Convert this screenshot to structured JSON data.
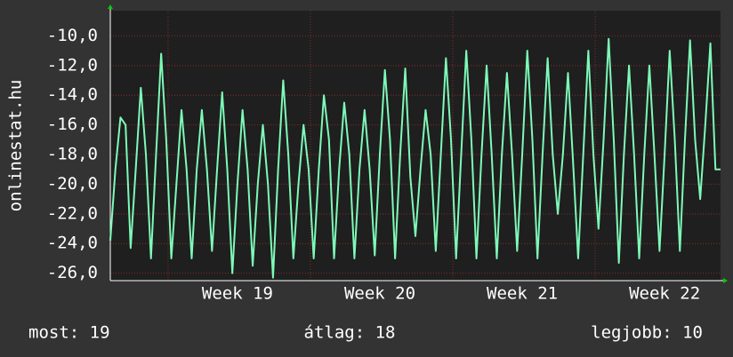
{
  "chart_data": {
    "type": "line",
    "ylabel": "onlinestat.hu",
    "categories": [
      null,
      null,
      null,
      null,
      null,
      null,
      null,
      null,
      null,
      null,
      null,
      null,
      null,
      null,
      null,
      null,
      null,
      null,
      null,
      null,
      null,
      null,
      null,
      null,
      null,
      "Week 19",
      null,
      null,
      null,
      null,
      null,
      null,
      null,
      null,
      null,
      null,
      null,
      null,
      null,
      null,
      null,
      null,
      null,
      null,
      null,
      null,
      null,
      null,
      null,
      null,
      null,
      null,
      null,
      "Week 20",
      null,
      null,
      null,
      null,
      null,
      null,
      null,
      null,
      null,
      null,
      null,
      null,
      null,
      null,
      null,
      null,
      null,
      null,
      null,
      null,
      null,
      null,
      null,
      null,
      null,
      null,
      null,
      "Week 21",
      null,
      null,
      null,
      null,
      null,
      null,
      null,
      null,
      null,
      null,
      null,
      null,
      null,
      null,
      null,
      null,
      null,
      null,
      null,
      null,
      null,
      null,
      null,
      null,
      null,
      null,
      null,
      "Week 22",
      null,
      null,
      null,
      null,
      null,
      null,
      null,
      null,
      null,
      null,
      null
    ],
    "series": [
      {
        "name": null,
        "color": "#7dfab8",
        "values": [
          -23.8,
          -19,
          -15.5,
          -16,
          -24.3,
          -19,
          -13.5,
          -18,
          -25,
          -18,
          -11.2,
          -17,
          -25,
          -20,
          -15,
          -19,
          -25,
          -19,
          -15,
          -19,
          -24.5,
          -19,
          -13.8,
          -19,
          -26,
          -20,
          -15,
          -19,
          -25.5,
          -20,
          -16,
          -20,
          -26.3,
          -19,
          -13,
          -18,
          -25,
          -20,
          -16,
          -19,
          -25,
          -19,
          -14,
          -17,
          -25,
          -19,
          -14.5,
          -18,
          -25,
          -19,
          -15,
          -19,
          -24.8,
          -18,
          -12.3,
          -17,
          -25,
          -18,
          -12.2,
          -19.5,
          -23.5,
          -19,
          -15,
          -18,
          -24.5,
          -18,
          -11.5,
          -17,
          -25,
          -18,
          -11,
          -17,
          -25,
          -18,
          -12,
          -18,
          -25,
          -18,
          -12.5,
          -18,
          -24.5,
          -18,
          -11,
          -17,
          -25,
          -18,
          -11.5,
          -18,
          -22,
          -18,
          -12.5,
          -18.5,
          -25,
          -18,
          -11,
          -18,
          -23,
          -17,
          -10.2,
          -17,
          -25.3,
          -18,
          -12,
          -18,
          -25,
          -18,
          -12,
          -18,
          -24.5,
          -18,
          -11,
          -17,
          -24.5,
          -17,
          -10.3,
          -17,
          -21,
          -16,
          -10.5,
          -19,
          -19
        ]
      }
    ],
    "ylim": [
      -26.5,
      -8.3
    ],
    "yticks": [
      {
        "value": -26,
        "label": "-26,0"
      },
      {
        "value": -24,
        "label": "-24,0"
      },
      {
        "value": -22,
        "label": "-22,0"
      },
      {
        "value": -20,
        "label": "-20,0"
      },
      {
        "value": -18,
        "label": "-18,0"
      },
      {
        "value": -16,
        "label": "-16,0"
      },
      {
        "value": -14,
        "label": "-14,0"
      },
      {
        "value": -12,
        "label": "-12,0"
      },
      {
        "value": -10,
        "label": "-10,0"
      }
    ],
    "grid": true,
    "footer": {
      "current": "most: 19",
      "average": "átlag: 18",
      "best": "legjobb: 10"
    }
  }
}
